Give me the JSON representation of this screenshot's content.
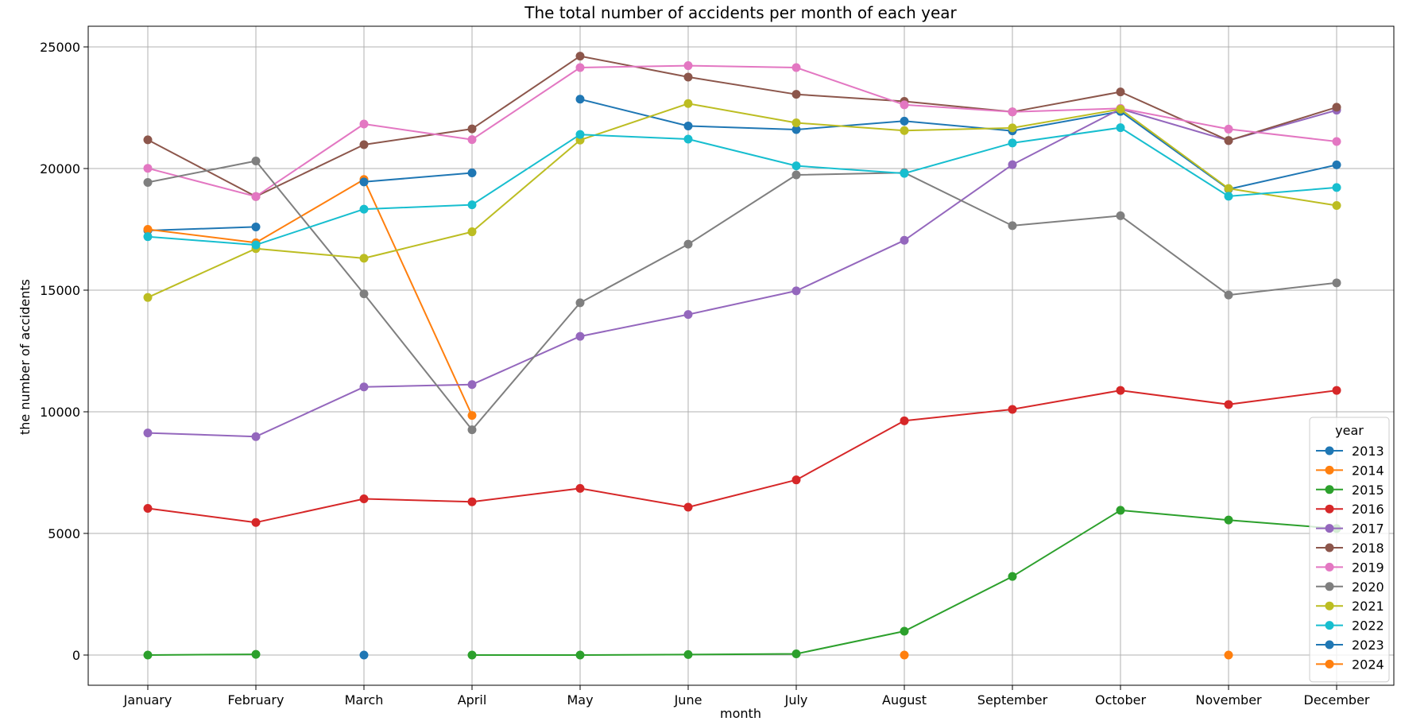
{
  "chart_data": {
    "type": "line",
    "title": "The total number of accidents per month of each year",
    "xlabel": "month",
    "ylabel": "the number of accidents",
    "categories": [
      "January",
      "February",
      "March",
      "April",
      "May",
      "June",
      "July",
      "August",
      "September",
      "October",
      "November",
      "December"
    ],
    "ylim": [
      -1300,
      26000
    ],
    "yticks": [
      0,
      5000,
      10000,
      15000,
      20000,
      25000
    ],
    "grid": true,
    "legend": {
      "title": "year",
      "placement": "lower-right"
    },
    "series": [
      {
        "name": "2013",
        "color": "#1f77b4",
        "values": [
          17450,
          17600,
          null,
          null,
          22850,
          21750,
          21600,
          21950,
          21550,
          22350,
          19150,
          20150
        ]
      },
      {
        "name": "2014",
        "color": "#ff7f0e",
        "values": [
          17500,
          16950,
          19550,
          9850,
          null,
          null,
          null,
          0,
          null,
          null,
          0,
          null
        ]
      },
      {
        "name": "2015",
        "color": "#2ca02c",
        "values": [
          0,
          30,
          null,
          0,
          0,
          20,
          50,
          980,
          3230,
          5950,
          5550,
          5200
        ]
      },
      {
        "name": "2016",
        "color": "#d62728",
        "values": [
          6030,
          5450,
          6420,
          6300,
          6850,
          6080,
          7200,
          9630,
          10100,
          10880,
          10300,
          10880
        ]
      },
      {
        "name": "2017",
        "color": "#9467bd",
        "values": [
          9130,
          8980,
          11020,
          11120,
          13100,
          14000,
          14970,
          17050,
          20160,
          22450,
          21150,
          22400
        ]
      },
      {
        "name": "2018",
        "color": "#8c564b",
        "values": [
          21180,
          18850,
          20980,
          21630,
          24620,
          23760,
          23050,
          22760,
          22330,
          23150,
          21150,
          22520
        ]
      },
      {
        "name": "2019",
        "color": "#e377c2",
        "values": [
          20010,
          18850,
          21830,
          21190,
          24150,
          24230,
          24150,
          22620,
          22330,
          22470,
          21620,
          21110
        ]
      },
      {
        "name": "2020",
        "color": "#7f7f7f",
        "values": [
          19430,
          20310,
          14850,
          9260,
          14480,
          16890,
          19740,
          19830,
          17650,
          18060,
          14800,
          15300
        ]
      },
      {
        "name": "2021",
        "color": "#bcbd22",
        "values": [
          14700,
          16710,
          16310,
          17400,
          21170,
          22670,
          21880,
          21560,
          21670,
          22440,
          19180,
          18480
        ]
      },
      {
        "name": "2022",
        "color": "#17becf",
        "values": [
          17200,
          16860,
          18330,
          18510,
          21400,
          21210,
          20110,
          19800,
          21050,
          21680,
          18860,
          19220
        ]
      },
      {
        "name": "2023",
        "color": "#1f77b4",
        "values": [
          null,
          null,
          19450,
          19820,
          null,
          null,
          null,
          null,
          null,
          null,
          null,
          null
        ],
        "extra_points": [
          [
            2,
            0
          ]
        ]
      },
      {
        "name": "2024",
        "color": "#ff7f0e",
        "values": [
          null,
          null,
          null,
          null,
          null,
          null,
          null,
          null,
          null,
          null,
          null,
          null
        ]
      }
    ]
  }
}
